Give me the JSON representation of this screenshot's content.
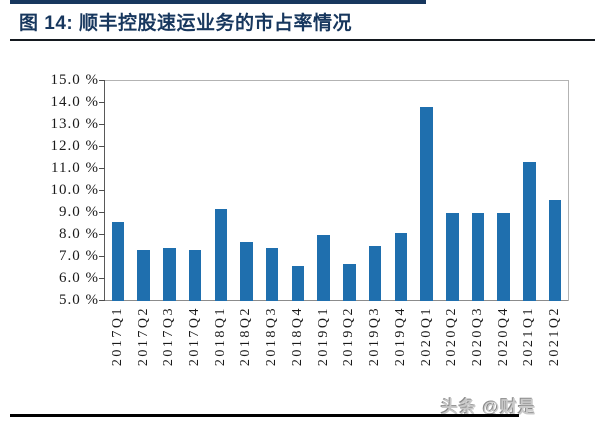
{
  "header": {
    "title": "图 14:  顺丰控股速运业务的市占率情况"
  },
  "chart_data": {
    "type": "bar",
    "title": "顺丰控股速运业务的市占率情况",
    "categories": [
      "2017Q1",
      "2017Q2",
      "2017Q3",
      "2017Q4",
      "2018Q1",
      "2018Q2",
      "2018Q3",
      "2018Q4",
      "2019Q1",
      "2019Q2",
      "2019Q3",
      "2019Q4",
      "2020Q1",
      "2020Q2",
      "2020Q3",
      "2020Q4",
      "2021Q1",
      "2021Q2"
    ],
    "values": [
      8.6,
      7.3,
      7.4,
      7.3,
      9.2,
      7.7,
      7.4,
      6.6,
      8.0,
      6.7,
      7.5,
      8.1,
      13.8,
      9.0,
      9.0,
      9.0,
      11.3,
      9.6
    ],
    "unit": "%",
    "xlabel": "",
    "ylabel": "",
    "ylim": [
      5,
      15
    ],
    "ytick_values": [
      15,
      14,
      13,
      12,
      11,
      10,
      9,
      8,
      7,
      6,
      5
    ],
    "ytick_labels": [
      "15.0 %",
      "14.0 %",
      "13.0 %",
      "12.0 %",
      "11.0 %",
      "10.0 %",
      "9.0 %",
      "8.0 %",
      "7.0 %",
      "6.0 %",
      "5.0 %"
    ],
    "grid": "off",
    "legend": "none",
    "bar_color": "#1F6FAE",
    "accent_color": "#17375E"
  },
  "watermark": {
    "text": "头条 @财是"
  }
}
